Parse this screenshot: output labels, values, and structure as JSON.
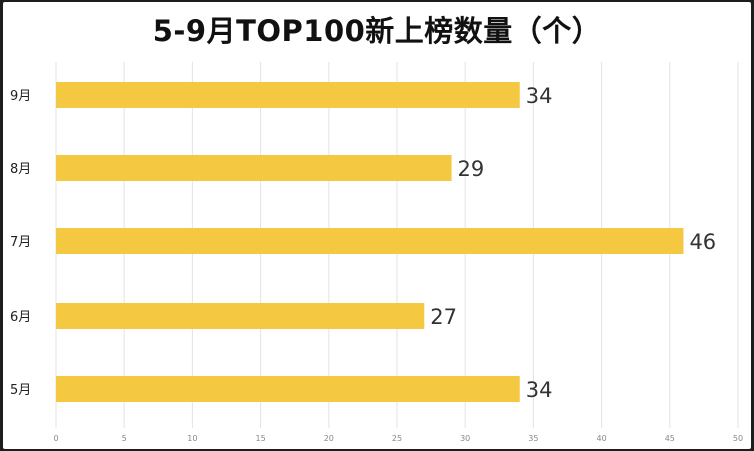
{
  "chart_data": {
    "type": "bar",
    "orientation": "horizontal",
    "title": "5-9月TOP100新上榜数量（个）",
    "categories": [
      "9月",
      "8月",
      "7月",
      "6月",
      "5月"
    ],
    "values": [
      34,
      29,
      46,
      27,
      34
    ],
    "xlim": [
      0,
      50
    ],
    "x_ticks": [
      "0",
      "5",
      "10",
      "15",
      "20",
      "25",
      "30",
      "35",
      "40",
      "45",
      "50"
    ],
    "xlabel": "",
    "ylabel": "",
    "grid": "vertical",
    "legend": "none",
    "bar_color": "#f5c842"
  }
}
